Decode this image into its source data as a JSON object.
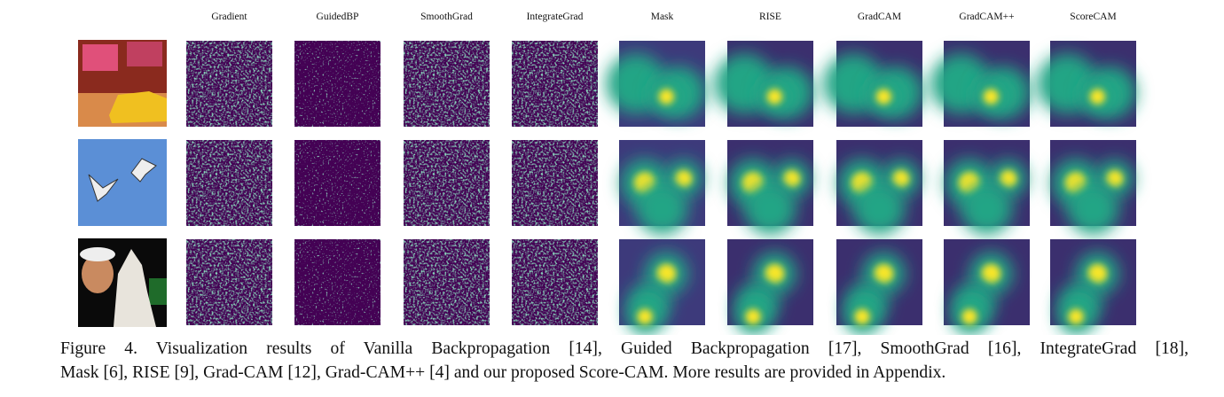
{
  "header": {
    "columns": [
      "Gradient",
      "GuidedBP",
      "SmoothGrad",
      "IntegrateGrad",
      "Mask",
      "RISE",
      "GradCAM",
      "GradCAM++",
      "ScoreCAM"
    ]
  },
  "caption": {
    "lines": [
      "Figure 4. Visualization results of Vanilla Backpropagation [14], Guided Backpropagation [17], SmoothGrad [16], IntegrateGrad [18],",
      "Mask [6], RISE [9], Grad-CAM [12], Grad-CAM++ [4] and our proposed Score-CAM. More results are provided in Appendix."
    ]
  }
}
